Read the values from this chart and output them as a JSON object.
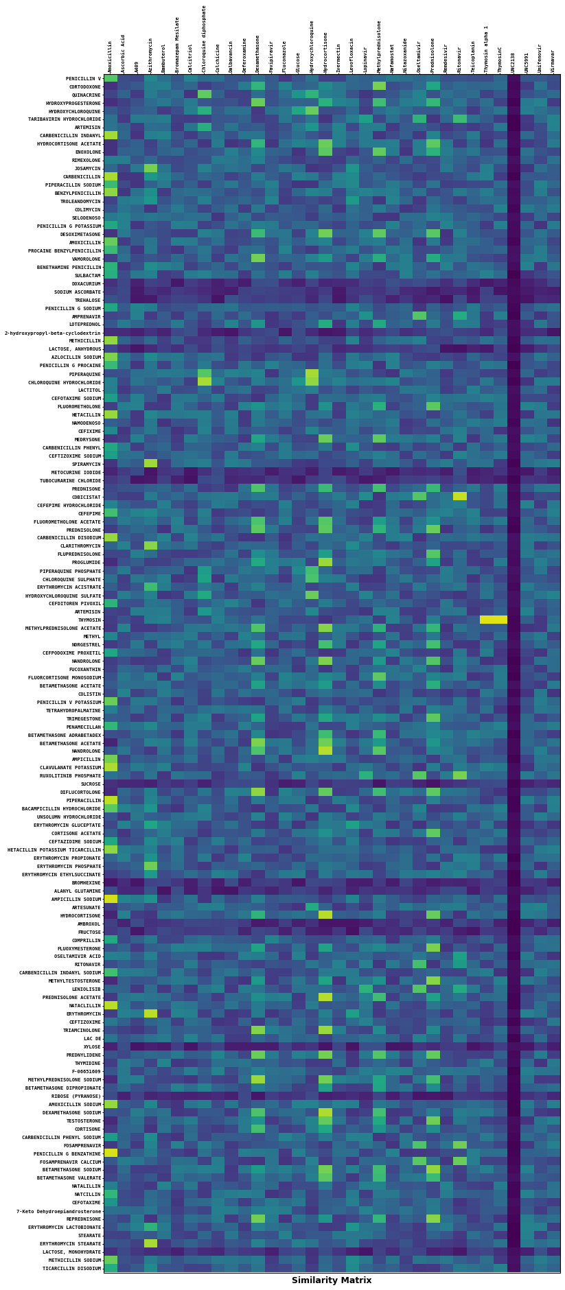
{
  "row_labels": [
    "PENICILLIN V",
    "CORTODOXONE",
    "QUINACRINE",
    "HYDROXYPROGESTERONE",
    "HYDROXYCHLOROQUINE",
    "TARIBAVIRIN HYDROCHLORIDE",
    "ARTEMISIN",
    "CARBENICILLIN INDANYL",
    "HYDROCORTISONE ACETATE",
    "ENOXOLONE",
    "RIMEXOLONE",
    "JOSAMYCIN",
    "CARBENICILLIN",
    "PIPERACILLIN SODIUM",
    "BENZYLPENICILLIN",
    "TROLEANDOMYCIN",
    "COLIMYCIN",
    "SELODENOSO",
    "PENICILLIN G POTASSIUM",
    "DESOXIMETASONE",
    "AMOXICILLIN",
    "PROCAINE BENZYLPENICILLIN",
    "VAMOROLONE",
    "BENETHAMINE PENICILLIN",
    "SULBACTAM",
    "DOXACURIUM",
    "SODIUM ASCORBATE",
    "TREHALOSE",
    "PENICILLIN G SODIUM",
    "AMPRENAVIR",
    "LOTEPREDNOL",
    "2-hydroxypropyl-beta-cyclodextrin",
    "METHICILLIN",
    "LACTOSE, ANHYDROUS",
    "AZLOCILLIN SODIUM",
    "PENICILLIN G PROCAINE",
    "PIPERAQUINE",
    "CHLOROQUINE HYDROCHLORIDE",
    "LACTITOL",
    "CEFOTAXIME SODIUM",
    "FLUOROMETHOLONE",
    "HETACILLIN",
    "NAMODENOSO",
    "CEFIXIME",
    "MEDRYSONE",
    "CARBENICILLIN PHENYL",
    "CEFTIZOXIME SODIUM",
    "SPIRAMYCIN",
    "METOCURINE IODIDE",
    "TUBOCURARINE CHLORIDE",
    "PREDNISONE",
    "COBICISTAT",
    "CEFEPIME HYDROCHLORIDE",
    "CEFEPIME",
    "FLUOROMETHOLONE ACETATE",
    "PREDNISOLONE",
    "CARBENICILLIN DISODIUM",
    "CLARITHROMYCIN",
    "FLUPREDNISOLONE",
    "PROGLUMIDE",
    "PIPERAQUINE PHOSPHATE",
    "CHLOROQUINE SULPHATE",
    "ERYTHROMYCIN ACISTRATE",
    "HYDROXYCHLOROQUINE SULFATE",
    "CEFDITOREN PIVOXIL",
    "ARTEMISIN",
    "THYMOSIN",
    "METHYLPREDNISOLONE ACETATE",
    "METHYL",
    "NORGESTREL",
    "CEFPODOXIME PROXETIL",
    "NANDROLONE",
    "FUCOXANTHIN",
    "FLUORCORTISONE MONOSODIUM",
    "BETAMETHASONE ACETATE",
    "COLISTIN",
    "PENICILLIN V POTASSIUM",
    "TETRAHYDROPALMATINE",
    "TRIMEGESTONE",
    "PENAMECILLAN",
    "BETAMETHASONE ADRABETADEX",
    "BETAMETHASONE ACETATE",
    "NANDROLONE",
    "AMPICILLIN",
    "CLAVULANATE POTASSIUM",
    "RUXOLITINIB PHOSPHATE",
    "SUCROSE",
    "DIFLUCORTOLONE",
    "PIPERACILLIN",
    "BACAMPICILLIN HYDROCHLORIDE",
    "UNSOLUMN HYDROCHLORIDE",
    "ERYTHROMYCIN GLUCEPTATE",
    "CORTISONE ACETATE",
    "CEFTAZIDIME SODIUM",
    "HETACILLIN POTASSIUM TICARCILLIN",
    "ERYTHROMYCIN PROPIONATE",
    "ERYTHROMYCIN PHOSPHATE",
    "ERYTHROMYCIN ETHYLSUCCINATE",
    "BROMHEXINE",
    "ALANYL GLUTAMINE",
    "AMPICILLIN SODIUM",
    "ARTESUNATE",
    "HYDROCORTISONE",
    "AMBROXOL",
    "FRUCTOSE",
    "COMPRILLIN",
    "FLUOXYMESTERONE",
    "OSELTAMIVIR ACID",
    "RITONAVIR",
    "CARBENICILLIN INDANYL SODIUM",
    "METHYLTESTOSTERONE",
    "LENIOLISIB",
    "PREDNISOLONE ACETATE",
    "NATACLILLIN",
    "ERYTHROMYCIN",
    "CEFTIZOXIME",
    "TRIAMCINOLONE",
    "LAC DE",
    "XYLOSE",
    "PREDNYLIDENE",
    "THYMIDINE",
    "F-06651609",
    "METHYLPREDNISOLONE SODIUM",
    "BETAMETHASONE DIPROPIONATE",
    "RIBOSE (PYRANOSE)",
    "AMOXICILLIN SODIUM",
    "DEXAMETHASONE SODIUM",
    "TESTOSTERONE",
    "CORTISONE",
    "CARBENICILLIN PHENYL SODIUM",
    "FOSAMPRENAVIR",
    "PENICILLIN G BENZATHINE",
    "FOSAMPRENAVIR CALCIUM",
    "BETAMETHASONE SODIUM",
    "BETAMETHASONE VALERATE",
    "NATALILLIN",
    "NATCILLIN",
    "CEFOTAXIME",
    "7-Keto Dehydroepiandrosterone",
    "REPREDNISONE",
    "ERYTHROMYCIN LACTOBIONATE",
    "STEARATE",
    "ERYTHROMYCIN STEARATE",
    "LACTOSE, MONOHYDRATE",
    "METHICILLIN SODIUM",
    "TICARCILLIN DISODIUM"
  ],
  "col_labels": [
    "Amoxicillin",
    "Ascorbic Acid",
    "A409",
    "Azithromycin",
    "Bambuterol",
    "Bromazepam Mesilate",
    "Calcitriol",
    "Chloroquine diphosphate",
    "Colchicine",
    "Dalbavancin",
    "Deferoxamine",
    "Dexamethasone",
    "Favipiravir",
    "Fluconazole",
    "Glucose",
    "Hydroxychloroquine",
    "Hydrocortisone",
    "Ivermectin",
    "Levofloxacin",
    "Lopinavir",
    "Methylprednisolone",
    "Nafamostat",
    "Nitazoxanide",
    "Oseltamivir",
    "Prednisolone",
    "Remdesivir",
    "Ritonavir",
    "Teicoplanin",
    "Thymosin alpha 1",
    "ThymosinC",
    "UNC2138",
    "UNC5991",
    "Umifenovir",
    "Virmavar"
  ],
  "colormap": "viridis",
  "title": "Similarity Matrix",
  "figsize": [
    8.23,
    18.8
  ],
  "dpi": 100,
  "vmin": 0,
  "vmax": 1,
  "dark_col": 30,
  "row_label_fontsize": 5,
  "col_label_fontsize": 5
}
